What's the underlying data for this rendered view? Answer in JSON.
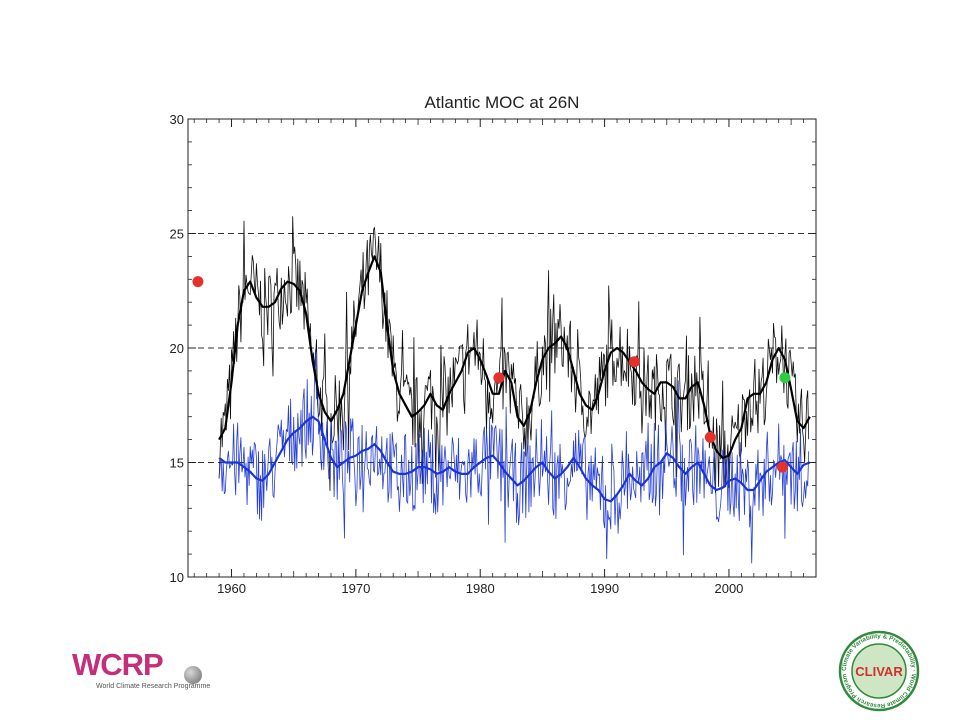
{
  "chart_data": {
    "type": "line",
    "title": "Atlantic MOC at 26N",
    "xlabel": "",
    "ylabel": "",
    "xlim": [
      1956.5,
      2007
    ],
    "ylim": [
      10,
      30
    ],
    "xticks": [
      1960,
      1970,
      1980,
      1990,
      2000
    ],
    "yticks": [
      10,
      15,
      20,
      25,
      30
    ],
    "grid_dashed_y": [
      15,
      20,
      25
    ],
    "series": [
      {
        "color": "#000000",
        "x": [
          1959.0,
          1959.5,
          1960.0,
          1960.5,
          1961.0,
          1961.5,
          1962.0,
          1962.5,
          1963.0,
          1963.5,
          1964.0,
          1964.5,
          1965.0,
          1965.5,
          1966.0,
          1966.5,
          1967.0,
          1967.5,
          1968.0,
          1968.5,
          1969.0,
          1969.5,
          1970.0,
          1970.5,
          1971.0,
          1971.5,
          1972.0,
          1972.5,
          1973.0,
          1973.5,
          1974.0,
          1974.5,
          1975.0,
          1975.5,
          1976.0,
          1976.5,
          1977.0,
          1977.5,
          1978.0,
          1978.5,
          1979.0,
          1979.5,
          1980.0,
          1980.5,
          1981.0,
          1981.5,
          1982.0,
          1982.5,
          1983.0,
          1983.5,
          1984.0,
          1984.5,
          1985.0,
          1985.5,
          1986.0,
          1986.5,
          1987.0,
          1987.5,
          1988.0,
          1988.5,
          1989.0,
          1989.5,
          1990.0,
          1990.5,
          1991.0,
          1991.5,
          1992.0,
          1992.5,
          1993.0,
          1993.5,
          1994.0,
          1994.5,
          1995.0,
          1995.5,
          1996.0,
          1996.5,
          1997.0,
          1997.5,
          1998.0,
          1998.5,
          1999.0,
          1999.5,
          2000.0,
          2000.5,
          2001.0,
          2001.5,
          2002.0,
          2002.5,
          2003.0,
          2003.5,
          2004.0,
          2004.5,
          2005.0,
          2005.5,
          2006.0,
          2006.5
        ],
        "values": [
          16.0,
          16.5,
          18.5,
          21.0,
          22.5,
          22.9,
          22.2,
          21.8,
          21.8,
          22.0,
          22.6,
          22.9,
          22.8,
          22.5,
          21.5,
          19.5,
          18.0,
          17.2,
          16.8,
          17.3,
          18.0,
          19.5,
          21.0,
          22.5,
          23.3,
          24.0,
          23.3,
          21.0,
          19.0,
          18.0,
          17.5,
          17.0,
          17.2,
          17.5,
          18.0,
          17.5,
          17.3,
          18.0,
          18.5,
          19.0,
          19.8,
          20.0,
          19.5,
          18.8,
          18.0,
          18.0,
          19.0,
          18.5,
          17.0,
          16.6,
          17.2,
          18.5,
          19.5,
          20.0,
          20.2,
          20.5,
          20.0,
          19.0,
          18.0,
          17.5,
          17.3,
          18.0,
          19.0,
          19.8,
          20.0,
          19.8,
          19.4,
          19.0,
          18.5,
          18.2,
          18.0,
          18.5,
          18.5,
          18.3,
          17.8,
          17.8,
          18.3,
          18.5,
          17.5,
          16.2,
          15.5,
          15.2,
          15.3,
          16.0,
          16.5,
          17.8,
          18.0,
          18.0,
          18.5,
          19.5,
          20.0,
          19.5,
          18.2,
          16.8,
          16.5,
          17.0
        ]
      },
      {
        "color": "#1a34d6",
        "x": [
          1959.0,
          1959.5,
          1960.0,
          1960.5,
          1961.0,
          1961.5,
          1962.0,
          1962.5,
          1963.0,
          1963.5,
          1964.0,
          1964.5,
          1965.0,
          1965.5,
          1966.0,
          1966.5,
          1967.0,
          1967.5,
          1968.0,
          1968.5,
          1969.0,
          1969.5,
          1970.0,
          1970.5,
          1971.0,
          1971.5,
          1972.0,
          1972.5,
          1973.0,
          1973.5,
          1974.0,
          1974.5,
          1975.0,
          1975.5,
          1976.0,
          1976.5,
          1977.0,
          1977.5,
          1978.0,
          1978.5,
          1979.0,
          1979.5,
          1980.0,
          1980.5,
          1981.0,
          1981.5,
          1982.0,
          1982.5,
          1983.0,
          1983.5,
          1984.0,
          1984.5,
          1985.0,
          1985.5,
          1986.0,
          1986.5,
          1987.0,
          1987.5,
          1988.0,
          1988.5,
          1989.0,
          1989.5,
          1990.0,
          1990.5,
          1991.0,
          1991.5,
          1992.0,
          1992.5,
          1993.0,
          1993.5,
          1994.0,
          1994.5,
          1995.0,
          1995.5,
          1996.0,
          1996.5,
          1997.0,
          1997.5,
          1998.0,
          1998.5,
          1999.0,
          1999.5,
          2000.0,
          2000.5,
          2001.0,
          2001.5,
          2002.0,
          2002.5,
          2003.0,
          2003.5,
          2004.0,
          2004.5,
          2005.0,
          2005.5,
          2006.0,
          2006.5
        ],
        "values": [
          15.2,
          15.0,
          15.0,
          15.0,
          14.8,
          14.6,
          14.3,
          14.2,
          14.5,
          15.0,
          15.5,
          16.0,
          16.3,
          16.5,
          16.8,
          17.0,
          16.8,
          16.0,
          15.2,
          14.8,
          15.0,
          15.2,
          15.3,
          15.5,
          15.6,
          15.8,
          15.5,
          15.0,
          14.6,
          14.5,
          14.5,
          14.6,
          14.8,
          14.8,
          14.7,
          14.5,
          14.6,
          14.8,
          14.6,
          14.5,
          14.5,
          14.8,
          15.0,
          15.2,
          15.3,
          15.0,
          14.6,
          14.3,
          14.0,
          14.2,
          14.5,
          14.8,
          15.0,
          14.6,
          14.3,
          14.5,
          14.8,
          15.2,
          14.8,
          14.3,
          14.0,
          13.8,
          13.4,
          13.3,
          13.6,
          14.0,
          14.5,
          14.2,
          14.0,
          14.3,
          14.8,
          15.0,
          15.4,
          15.2,
          14.8,
          14.5,
          14.8,
          15.0,
          14.5,
          14.0,
          13.8,
          13.9,
          14.2,
          14.3,
          14.1,
          13.8,
          13.8,
          14.2,
          14.6,
          14.8,
          15.0,
          15.1,
          14.8,
          14.5,
          14.9,
          15.0
        ]
      }
    ],
    "markers": [
      {
        "x": 1957.3,
        "y": 22.9,
        "color": "#e5312b"
      },
      {
        "x": 1981.5,
        "y": 18.7,
        "color": "#e5312b"
      },
      {
        "x": 1992.4,
        "y": 19.4,
        "color": "#e5312b"
      },
      {
        "x": 1998.5,
        "y": 16.1,
        "color": "#e5312b"
      },
      {
        "x": 2004.3,
        "y": 14.8,
        "color": "#e5312b"
      },
      {
        "x": 2004.5,
        "y": 18.7,
        "color": "#2ecc40"
      }
    ]
  },
  "logos": {
    "wcrp_letters": "WCRP",
    "wcrp_subtitle": "World Climate Research Programme",
    "clivar_name": "CLIVAR",
    "clivar_ring_text": "Climate Variability & Predictability · World Climate Research Programme"
  }
}
